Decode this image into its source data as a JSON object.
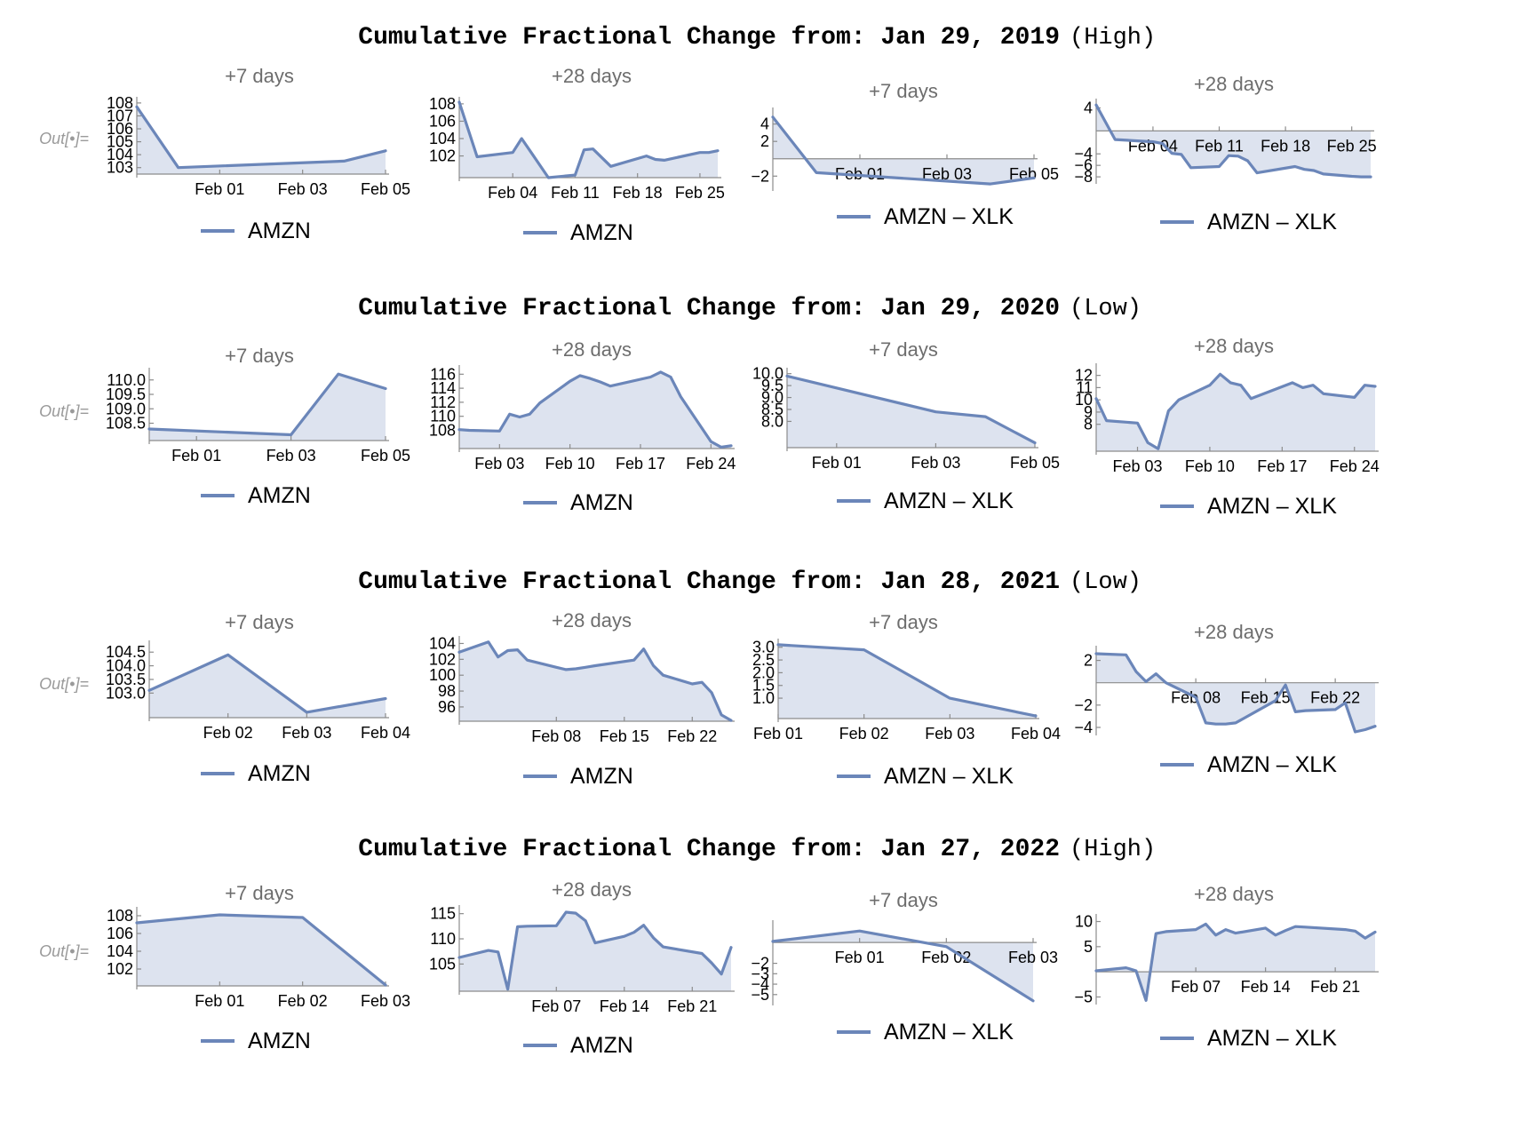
{
  "colors": {
    "series": "#6b86b9",
    "fill": "#dde3ef"
  },
  "out_label": "Out[•]=",
  "rows": [
    {
      "title": "Cumulative Fractional Change from: Jan 29, 2019",
      "suffix": "(High)"
    },
    {
      "title": "Cumulative Fractional Change from: Jan 29, 2020",
      "suffix": "(Low)"
    },
    {
      "title": "Cumulative Fractional Change from: Jan 28, 2021",
      "suffix": "(Low)"
    },
    {
      "title": "Cumulative Fractional Change from: Jan 27, 2022",
      "suffix": "(High)"
    }
  ],
  "chart_data": [
    {
      "type": "area",
      "subtitle": "+7 days",
      "series": [
        {
          "name": "AMZN"
        }
      ],
      "x": [
        "2019-01-30",
        "2019-01-31",
        "2019-02-04",
        "2019-02-05"
      ],
      "values": [
        107.7,
        103.0,
        103.5,
        104.3
      ],
      "ylim": [
        102.5,
        108.2
      ],
      "yticks": [
        103,
        104,
        105,
        106,
        107,
        108
      ],
      "xlim": [
        "2019-01-30",
        "2019-02-05"
      ],
      "xticks": [
        "Feb 01",
        "Feb 03",
        "Feb 05"
      ]
    },
    {
      "type": "area",
      "subtitle": "+28 days",
      "series": [
        {
          "name": "AMZN"
        }
      ],
      "x": [
        "2019-01-29",
        "2019-01-31",
        "2019-02-04",
        "2019-02-05",
        "2019-02-06",
        "2019-02-08",
        "2019-02-11",
        "2019-02-12",
        "2019-02-13",
        "2019-02-15",
        "2019-02-19",
        "2019-02-20",
        "2019-02-21",
        "2019-02-25",
        "2019-02-26",
        "2019-02-27"
      ],
      "values": [
        108.2,
        101.9,
        102.4,
        104.0,
        102.5,
        99.5,
        99.8,
        102.7,
        102.8,
        100.8,
        102.0,
        101.6,
        101.5,
        102.4,
        102.4,
        102.6
      ],
      "ylim": [
        99.5,
        108.4
      ],
      "yticks": [
        102,
        104,
        106,
        108
      ],
      "xlim": [
        "2019-01-29",
        "2019-02-27"
      ],
      "xticks": [
        "Feb 04",
        "Feb 11",
        "Feb 18",
        "Feb 25"
      ]
    },
    {
      "type": "area",
      "subtitle": "+7 days",
      "series": [
        {
          "name": "AMZN – XLK"
        }
      ],
      "x": [
        "2019-01-30",
        "2019-01-31",
        "2019-02-04",
        "2019-02-05"
      ],
      "values": [
        4.8,
        -1.6,
        -2.9,
        -2.2
      ],
      "ylim": [
        -3.3,
        5.5
      ],
      "yticks": [
        -2,
        2,
        4
      ],
      "xlim": [
        "2019-01-30",
        "2019-02-05"
      ],
      "xticks": [
        "Feb 01",
        "Feb 03",
        "Feb 05"
      ]
    },
    {
      "type": "area",
      "subtitle": "+28 days",
      "series": [
        {
          "name": "AMZN – XLK"
        }
      ],
      "x": [
        "2019-01-29",
        "2019-01-31",
        "2019-02-04",
        "2019-02-05",
        "2019-02-06",
        "2019-02-07",
        "2019-02-08",
        "2019-02-11",
        "2019-02-12",
        "2019-02-13",
        "2019-02-14",
        "2019-02-15",
        "2019-02-19",
        "2019-02-20",
        "2019-02-21",
        "2019-02-22",
        "2019-02-25",
        "2019-02-26",
        "2019-02-27"
      ],
      "values": [
        4.5,
        -1.5,
        -1.9,
        -2.2,
        -3.9,
        -4.1,
        -6.4,
        -6.2,
        -4.3,
        -4.4,
        -5.2,
        -7.3,
        -6.2,
        -6.7,
        -6.9,
        -7.5,
        -7.9,
        -8.0,
        -8.0
      ],
      "ylim": [
        -8.6,
        5.0
      ],
      "yticks": [
        -8,
        -6,
        -4,
        4
      ],
      "xlim": [
        "2019-01-29",
        "2019-02-27"
      ],
      "xticks": [
        "Feb 04",
        "Feb 11",
        "Feb 18",
        "Feb 25"
      ]
    },
    {
      "type": "area",
      "subtitle": "+7 days",
      "series": [
        {
          "name": "AMZN"
        }
      ],
      "x": [
        "2020-01-31",
        "2020-02-03",
        "2020-02-04",
        "2020-02-05"
      ],
      "values": [
        108.3,
        108.1,
        110.2,
        109.7
      ],
      "ylim": [
        107.9,
        110.3
      ],
      "yticks": [
        108.5,
        109.0,
        109.5,
        110.0
      ],
      "xlim": [
        "2020-01-31",
        "2020-02-05"
      ],
      "xticks": [
        "Feb 01",
        "Feb 03",
        "Feb 05"
      ]
    },
    {
      "type": "area",
      "subtitle": "+28 days",
      "series": [
        {
          "name": "AMZN"
        }
      ],
      "x": [
        "2020-01-30",
        "2020-01-31",
        "2020-02-03",
        "2020-02-04",
        "2020-02-05",
        "2020-02-06",
        "2020-02-07",
        "2020-02-10",
        "2020-02-11",
        "2020-02-12",
        "2020-02-13",
        "2020-02-14",
        "2020-02-18",
        "2020-02-19",
        "2020-02-20",
        "2020-02-21",
        "2020-02-24",
        "2020-02-25",
        "2020-02-26"
      ],
      "values": [
        108.1,
        108.0,
        107.9,
        110.3,
        109.9,
        110.3,
        111.9,
        115.0,
        115.8,
        115.4,
        114.9,
        114.3,
        115.6,
        116.3,
        115.6,
        112.8,
        106.4,
        105.6,
        105.8
      ],
      "ylim": [
        105.4,
        116.8
      ],
      "yticks": [
        108,
        110,
        112,
        114,
        116
      ],
      "xlim": [
        "2020-01-30",
        "2020-02-26"
      ],
      "xticks": [
        "Feb 03",
        "Feb 10",
        "Feb 17",
        "Feb 24"
      ]
    },
    {
      "type": "area",
      "subtitle": "+7 days",
      "series": [
        {
          "name": "AMZN – XLK"
        }
      ],
      "x": [
        "2020-01-31",
        "2020-02-03",
        "2020-02-04",
        "2020-02-05"
      ],
      "values": [
        9.9,
        8.4,
        8.2,
        7.1
      ],
      "ylim": [
        6.9,
        10.1
      ],
      "yticks": [
        8.0,
        8.5,
        9.0,
        9.5,
        10.0
      ],
      "xlim": [
        "2020-01-31",
        "2020-02-05"
      ],
      "xticks": [
        "Feb 01",
        "Feb 03",
        "Feb 05"
      ]
    },
    {
      "type": "area",
      "subtitle": "+28 days",
      "series": [
        {
          "name": "AMZN – XLK"
        }
      ],
      "x": [
        "2020-01-30",
        "2020-01-31",
        "2020-02-03",
        "2020-02-04",
        "2020-02-05",
        "2020-02-06",
        "2020-02-07",
        "2020-02-10",
        "2020-02-11",
        "2020-02-12",
        "2020-02-13",
        "2020-02-14",
        "2020-02-18",
        "2020-02-19",
        "2020-02-20",
        "2020-02-21",
        "2020-02-24",
        "2020-02-25",
        "2020-02-26"
      ],
      "values": [
        10.1,
        8.3,
        8.1,
        6.5,
        6.0,
        9.1,
        10.0,
        11.2,
        12.1,
        11.4,
        11.2,
        10.1,
        11.4,
        11.0,
        11.2,
        10.5,
        10.2,
        11.2,
        11.1
      ],
      "ylim": [
        5.8,
        12.7
      ],
      "yticks": [
        8,
        9,
        10,
        11,
        12
      ],
      "xlim": [
        "2020-01-30",
        "2020-02-26"
      ],
      "xticks": [
        "Feb 03",
        "Feb 10",
        "Feb 17",
        "Feb 24"
      ]
    },
    {
      "type": "area",
      "subtitle": "+7 days",
      "series": [
        {
          "name": "AMZN"
        }
      ],
      "x": [
        "2021-02-01",
        "2021-02-02",
        "2021-02-03",
        "2021-02-04"
      ],
      "values": [
        103.1,
        104.4,
        102.3,
        102.8
      ],
      "ylim": [
        102.1,
        104.8
      ],
      "yticks": [
        103.0,
        103.5,
        104.0,
        104.5
      ],
      "xlim": [
        "2021-02-01",
        "2021-02-04"
      ],
      "xticks": [
        "Feb 02",
        "Feb 03",
        "Feb 04"
      ]
    },
    {
      "type": "area",
      "subtitle": "+28 days",
      "series": [
        {
          "name": "AMZN"
        }
      ],
      "x": [
        "2021-01-29",
        "2021-02-01",
        "2021-02-02",
        "2021-02-03",
        "2021-02-04",
        "2021-02-05",
        "2021-02-08",
        "2021-02-09",
        "2021-02-10",
        "2021-02-11",
        "2021-02-12",
        "2021-02-16",
        "2021-02-17",
        "2021-02-18",
        "2021-02-19",
        "2021-02-22",
        "2021-02-23",
        "2021-02-24",
        "2021-02-25",
        "2021-02-26"
      ],
      "values": [
        102.9,
        104.2,
        102.3,
        103.1,
        103.2,
        101.9,
        101.0,
        100.7,
        100.8,
        101.0,
        101.2,
        101.9,
        103.3,
        101.2,
        100.0,
        98.9,
        99.1,
        97.8,
        95.0,
        94.3
      ],
      "ylim": [
        94.2,
        104.5
      ],
      "yticks": [
        96,
        98,
        100,
        102,
        104
      ],
      "xlim": [
        "2021-01-29",
        "2021-02-26"
      ],
      "xticks": [
        "Feb 08",
        "Feb 15",
        "Feb 22"
      ]
    },
    {
      "type": "area",
      "subtitle": "+7 days",
      "series": [
        {
          "name": "AMZN – XLK"
        }
      ],
      "x": [
        "2021-02-01",
        "2021-02-02",
        "2021-02-03",
        "2021-02-04"
      ],
      "values": [
        3.1,
        2.9,
        1.0,
        0.3
      ],
      "ylim": [
        0.2,
        3.2
      ],
      "yticks": [
        1.0,
        1.5,
        2.0,
        2.5,
        3.0
      ],
      "xlim": [
        "2021-02-01",
        "2021-02-04"
      ],
      "xticks": [
        "Feb 01",
        "Feb 02",
        "Feb 03",
        "Feb 04"
      ]
    },
    {
      "type": "area",
      "subtitle": "+28 days",
      "series": [
        {
          "name": "AMZN – XLK"
        }
      ],
      "x": [
        "2021-01-29",
        "2021-02-01",
        "2021-02-02",
        "2021-02-03",
        "2021-02-04",
        "2021-02-05",
        "2021-02-08",
        "2021-02-09",
        "2021-02-10",
        "2021-02-11",
        "2021-02-12",
        "2021-02-16",
        "2021-02-17",
        "2021-02-18",
        "2021-02-19",
        "2021-02-22",
        "2021-02-23",
        "2021-02-24",
        "2021-02-25",
        "2021-02-26"
      ],
      "values": [
        2.6,
        2.5,
        1.0,
        0.1,
        0.8,
        0.0,
        -1.3,
        -3.6,
        -3.7,
        -3.7,
        -3.6,
        -1.6,
        -0.2,
        -2.6,
        -2.5,
        -2.4,
        -1.8,
        -4.4,
        -4.2,
        -3.9
      ],
      "ylim": [
        -4.4,
        3.0
      ],
      "yticks": [
        -4,
        -2,
        2
      ],
      "xlim": [
        "2021-01-29",
        "2021-02-26"
      ],
      "xticks": [
        "Feb 08",
        "Feb 15",
        "Feb 22"
      ]
    },
    {
      "type": "area",
      "subtitle": "+7 days",
      "series": [
        {
          "name": "AMZN"
        }
      ],
      "x": [
        "2022-01-31",
        "2022-02-01",
        "2022-02-02",
        "2022-02-03"
      ],
      "values": [
        107.2,
        108.1,
        107.8,
        100.2
      ],
      "ylim": [
        100.1,
        108.6
      ],
      "yticks": [
        102,
        104,
        106,
        108
      ],
      "xlim": [
        "2022-01-31",
        "2022-02-03"
      ],
      "xticks": [
        "Feb 01",
        "Feb 02",
        "Feb 03"
      ]
    },
    {
      "type": "area",
      "subtitle": "+28 days",
      "series": [
        {
          "name": "AMZN"
        }
      ],
      "x": [
        "2022-01-28",
        "2022-01-31",
        "2022-02-01",
        "2022-02-02",
        "2022-02-03",
        "2022-02-04",
        "2022-02-07",
        "2022-02-08",
        "2022-02-09",
        "2022-02-10",
        "2022-02-11",
        "2022-02-14",
        "2022-02-15",
        "2022-02-16",
        "2022-02-17",
        "2022-02-18",
        "2022-02-22",
        "2022-02-23",
        "2022-02-24",
        "2022-02-25"
      ],
      "values": [
        106.3,
        107.7,
        107.4,
        100.0,
        112.4,
        112.5,
        112.6,
        115.3,
        115.1,
        113.6,
        109.2,
        110.5,
        111.3,
        112.7,
        110.2,
        108.4,
        107.1,
        105.2,
        103.0,
        108.3
      ],
      "ylim": [
        99.6,
        116.0
      ],
      "yticks": [
        105,
        110,
        115
      ],
      "xlim": [
        "2022-01-28",
        "2022-02-25"
      ],
      "xticks": [
        "Feb 07",
        "Feb 14",
        "Feb 21"
      ]
    },
    {
      "type": "area",
      "subtitle": "+7 days",
      "series": [
        {
          "name": "AMZN – XLK"
        }
      ],
      "x": [
        "2022-01-31",
        "2022-02-01",
        "2022-02-02",
        "2022-02-03"
      ],
      "values": [
        0.1,
        1.1,
        -0.4,
        -5.6
      ],
      "ylim": [
        -5.7,
        1.8
      ],
      "yticks": [
        -5,
        -4,
        -3,
        -2
      ],
      "xlim": [
        "2022-01-31",
        "2022-02-03"
      ],
      "xticks": [
        "Feb 01",
        "Feb 02",
        "Feb 03"
      ]
    },
    {
      "type": "area",
      "subtitle": "+28 days",
      "series": [
        {
          "name": "AMZN – XLK"
        }
      ],
      "x": [
        "2022-01-28",
        "2022-01-31",
        "2022-02-01",
        "2022-02-02",
        "2022-02-03",
        "2022-02-04",
        "2022-02-07",
        "2022-02-08",
        "2022-02-09",
        "2022-02-10",
        "2022-02-11",
        "2022-02-14",
        "2022-02-15",
        "2022-02-16",
        "2022-02-17",
        "2022-02-18",
        "2022-02-22",
        "2022-02-23",
        "2022-02-24",
        "2022-02-25"
      ],
      "values": [
        0.2,
        0.8,
        0.2,
        -5.7,
        7.6,
        8.0,
        8.4,
        9.5,
        7.3,
        8.4,
        7.7,
        8.7,
        7.3,
        8.2,
        9.0,
        8.9,
        8.4,
        8.1,
        6.7,
        7.9
      ],
      "ylim": [
        -5.8,
        10.8
      ],
      "yticks": [
        -5,
        5,
        10
      ],
      "xlim": [
        "2022-01-28",
        "2022-02-25"
      ],
      "xticks": [
        "Feb 07",
        "Feb 14",
        "Feb 21"
      ]
    }
  ]
}
